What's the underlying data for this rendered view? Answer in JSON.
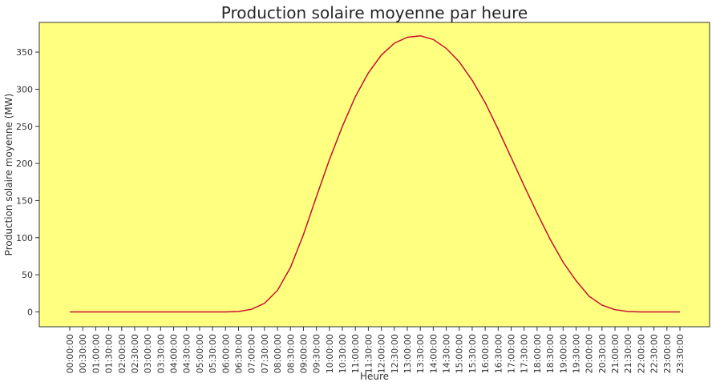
{
  "chart_data": {
    "type": "line",
    "title": "Production solaire moyenne par heure",
    "xlabel": "Heure",
    "ylabel": "Production solaire moyenne (MW)",
    "ylim": [
      -20,
      390
    ],
    "yticks": [
      0,
      50,
      100,
      150,
      200,
      250,
      300,
      350
    ],
    "grid": false,
    "colors": {
      "plot_background": "#ffff80",
      "line": "#c8102e",
      "axes": "#333333"
    },
    "x": [
      "00:00:00",
      "00:30:00",
      "01:00:00",
      "01:30:00",
      "02:00:00",
      "02:30:00",
      "03:00:00",
      "03:30:00",
      "04:00:00",
      "04:30:00",
      "05:00:00",
      "05:30:00",
      "06:00:00",
      "06:30:00",
      "07:00:00",
      "07:30:00",
      "08:00:00",
      "08:30:00",
      "09:00:00",
      "09:30:00",
      "10:00:00",
      "10:30:00",
      "11:00:00",
      "11:30:00",
      "12:00:00",
      "12:30:00",
      "13:00:00",
      "13:30:00",
      "14:00:00",
      "14:30:00",
      "15:00:00",
      "15:30:00",
      "16:00:00",
      "16:30:00",
      "17:00:00",
      "17:30:00",
      "18:00:00",
      "18:30:00",
      "19:00:00",
      "19:30:00",
      "20:00:00",
      "20:30:00",
      "21:00:00",
      "21:30:00",
      "22:00:00",
      "22:30:00",
      "23:00:00",
      "23:30:00"
    ],
    "series": [
      {
        "values": [
          0,
          0,
          0,
          0,
          0,
          0,
          0,
          0,
          0,
          0,
          0,
          0,
          0,
          0.5,
          3.5,
          11.5,
          29,
          60,
          104,
          155,
          205,
          250,
          290,
          322,
          346,
          362,
          370,
          372,
          367,
          355,
          337,
          312,
          282,
          246,
          208,
          170,
          133,
          98,
          67,
          42,
          21,
          9,
          3,
          0.5,
          0,
          0,
          0,
          0
        ]
      }
    ]
  }
}
